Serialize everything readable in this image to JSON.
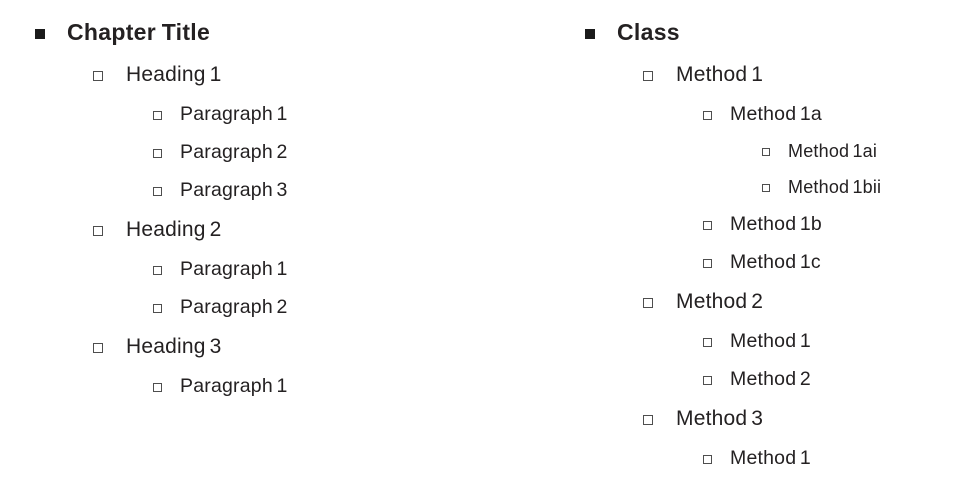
{
  "colors": {
    "background": "#ffffff",
    "text": "#242122",
    "bullet_fill": "#1b1b1b",
    "bullet_border": "#4e4e4e"
  },
  "icons": {
    "level1_bullet": "filled-square",
    "sublevel_bullet": "hollow-square"
  },
  "outline_left": {
    "items": [
      {
        "label": "Chapter Title",
        "level": 1
      },
      {
        "label": "Heading 1",
        "level": 2
      },
      {
        "label": "Paragraph 1",
        "level": 3
      },
      {
        "label": "Paragraph 2",
        "level": 3
      },
      {
        "label": "Paragraph 3",
        "level": 3
      },
      {
        "label": "Heading 2",
        "level": 2
      },
      {
        "label": "Paragraph 1",
        "level": 3
      },
      {
        "label": "Paragraph 2",
        "level": 3
      },
      {
        "label": "Heading 3",
        "level": 2
      },
      {
        "label": "Paragraph 1",
        "level": 3
      }
    ]
  },
  "outline_right": {
    "items": [
      {
        "label": "Class",
        "level": 1
      },
      {
        "label": "Method 1",
        "level": 2
      },
      {
        "label": "Method 1a",
        "level": 3
      },
      {
        "label": "Method 1ai",
        "level": 4
      },
      {
        "label": "Method 1bii",
        "level": 4
      },
      {
        "label": "Method 1b",
        "level": 3
      },
      {
        "label": "Method 1c",
        "level": 3
      },
      {
        "label": "Method 2",
        "level": 2
      },
      {
        "label": "Method 1",
        "level": 3
      },
      {
        "label": "Method 2",
        "level": 3
      },
      {
        "label": "Method 3",
        "level": 2
      },
      {
        "label": "Method 1",
        "level": 3
      }
    ]
  }
}
